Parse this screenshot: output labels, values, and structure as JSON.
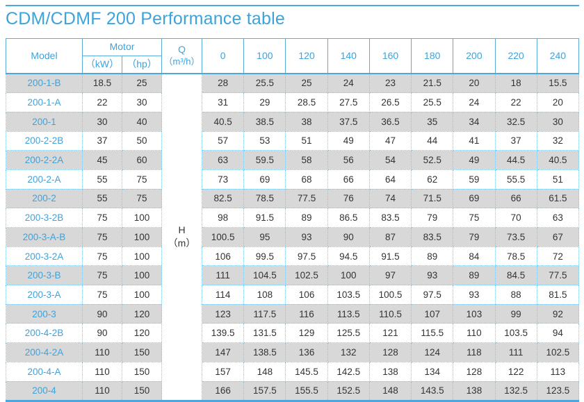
{
  "page": {
    "title": "CDM/CDMF 200 Performance table"
  },
  "colors": {
    "accent_blue": "#3EA2DB",
    "solid_border_blue": "#5AACDE",
    "dotted_border_blue": "#85C7EA",
    "stripe_gray": "#D8D8D8",
    "text_dark": "#333333"
  },
  "table": {
    "headers": {
      "model": "Model",
      "motor": "Motor",
      "kw": "（kW）",
      "hp": "（hp）",
      "q_line1": "Q",
      "q_line2": "（m³/h）",
      "flow_values": [
        "0",
        "100",
        "120",
        "140",
        "160",
        "180",
        "200",
        "220",
        "240"
      ],
      "h_label_line1": "H",
      "h_label_line2": "（m）"
    },
    "rows": [
      {
        "model": "200-1-B",
        "kw": "18.5",
        "hp": "25",
        "values": [
          "28",
          "25.5",
          "25",
          "24",
          "23",
          "21.5",
          "20",
          "18",
          "15.5"
        ]
      },
      {
        "model": "200-1-A",
        "kw": "22",
        "hp": "30",
        "values": [
          "31",
          "29",
          "28.5",
          "27.5",
          "26.5",
          "25.5",
          "24",
          "22",
          "20"
        ]
      },
      {
        "model": "200-1",
        "kw": "30",
        "hp": "40",
        "values": [
          "40.5",
          "38.5",
          "38",
          "37.5",
          "36.5",
          "35",
          "34",
          "32.5",
          "30"
        ]
      },
      {
        "model": "200-2-2B",
        "kw": "37",
        "hp": "50",
        "values": [
          "57",
          "53",
          "51",
          "49",
          "47",
          "44",
          "41",
          "37",
          "32"
        ]
      },
      {
        "model": "200-2-2A",
        "kw": "45",
        "hp": "60",
        "values": [
          "63",
          "59.5",
          "58",
          "56",
          "54",
          "52.5",
          "49",
          "44.5",
          "40.5"
        ]
      },
      {
        "model": "200-2-A",
        "kw": "55",
        "hp": "75",
        "values": [
          "73",
          "69",
          "68",
          "66",
          "64",
          "62",
          "59",
          "55.5",
          "51"
        ]
      },
      {
        "model": "200-2",
        "kw": "55",
        "hp": "75",
        "values": [
          "82.5",
          "78.5",
          "77.5",
          "76",
          "74",
          "71.5",
          "69",
          "66",
          "61.5"
        ]
      },
      {
        "model": "200-3-2B",
        "kw": "75",
        "hp": "100",
        "values": [
          "98",
          "91.5",
          "89",
          "86.5",
          "83.5",
          "79",
          "75",
          "70",
          "63"
        ]
      },
      {
        "model": "200-3-A-B",
        "kw": "75",
        "hp": "100",
        "values": [
          "100.5",
          "95",
          "93",
          "90",
          "87",
          "83.5",
          "79",
          "73.5",
          "67"
        ]
      },
      {
        "model": "200-3-2A",
        "kw": "75",
        "hp": "100",
        "values": [
          "106",
          "99.5",
          "97.5",
          "94.5",
          "91.5",
          "89",
          "84",
          "78.5",
          "72"
        ]
      },
      {
        "model": "200-3-B",
        "kw": "75",
        "hp": "100",
        "values": [
          "111",
          "104.5",
          "102.5",
          "100",
          "97",
          "93",
          "89",
          "84.5",
          "77.5"
        ]
      },
      {
        "model": "200-3-A",
        "kw": "75",
        "hp": "100",
        "values": [
          "114",
          "108",
          "106",
          "103.5",
          "100.5",
          "97.5",
          "93",
          "88",
          "81.5"
        ]
      },
      {
        "model": "200-3",
        "kw": "90",
        "hp": "120",
        "values": [
          "123",
          "117.5",
          "116",
          "113.5",
          "110.5",
          "107",
          "103",
          "99",
          "92"
        ]
      },
      {
        "model": "200-4-2B",
        "kw": "90",
        "hp": "120",
        "values": [
          "139.5",
          "131.5",
          "129",
          "125.5",
          "121",
          "115.5",
          "110",
          "103.5",
          "94"
        ]
      },
      {
        "model": "200-4-2A",
        "kw": "110",
        "hp": "150",
        "values": [
          "147",
          "138.5",
          "136",
          "132",
          "128",
          "124",
          "118",
          "111",
          "102.5"
        ]
      },
      {
        "model": "200-4-A",
        "kw": "110",
        "hp": "150",
        "values": [
          "157",
          "148",
          "145.5",
          "142.5",
          "138",
          "134",
          "128",
          "122",
          "113"
        ]
      },
      {
        "model": "200-4",
        "kw": "110",
        "hp": "150",
        "values": [
          "166",
          "157.5",
          "155.5",
          "152.5",
          "148",
          "143.5",
          "138",
          "132.5",
          "123.5"
        ]
      }
    ]
  }
}
